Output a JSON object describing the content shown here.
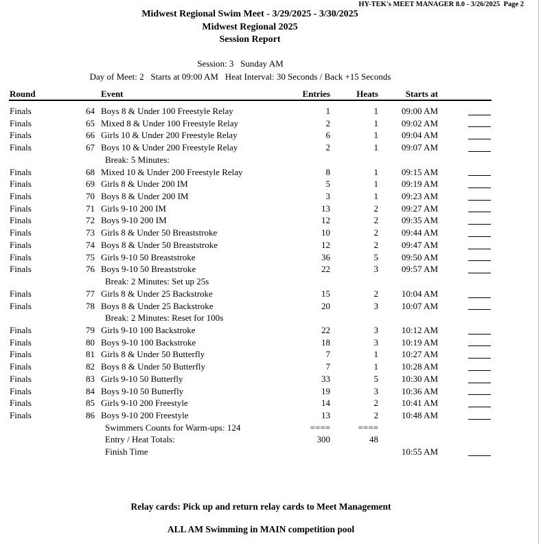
{
  "page_header": {
    "right": "HY-TEK's MEET MANAGER 8.0 - 3/26/2025  Page 2"
  },
  "title": {
    "line1": "Midwest Regional Swim Meet - 3/29/2025 - 3/30/2025",
    "line2": "Midwest Regional 2025",
    "line3": "Session Report"
  },
  "session_info": {
    "session_line": "Session: 3   Sunday AM",
    "detail_line": "Day of Meet: 2   Starts at 09:00 AM   Heat Interval: 30 Seconds / Back +15 Seconds"
  },
  "table": {
    "columns": {
      "round": "Round",
      "event": "Event",
      "entries": "Entries",
      "heats": "Heats",
      "starts_at": "Starts at"
    },
    "rows": [
      {
        "type": "event",
        "round": "Finals",
        "num": "64",
        "name": "Boys 8 & Under 100 Freestyle Relay",
        "entries": "1",
        "heats": "1",
        "starts_at": "09:00 AM",
        "blank_line": true
      },
      {
        "type": "event",
        "round": "Finals",
        "num": "65",
        "name": "Mixed 8 & Under 100 Freestyle Relay",
        "entries": "2",
        "heats": "1",
        "starts_at": "09:02 AM",
        "blank_line": true
      },
      {
        "type": "event",
        "round": "Finals",
        "num": "66",
        "name": "Girls 10 & Under 200 Freestyle Relay",
        "entries": "6",
        "heats": "1",
        "starts_at": "09:04 AM",
        "blank_line": true
      },
      {
        "type": "event",
        "round": "Finals",
        "num": "67",
        "name": "Boys 10 & Under 200 Freestyle Relay",
        "entries": "2",
        "heats": "1",
        "starts_at": "09:07 AM",
        "blank_line": true
      },
      {
        "type": "break",
        "label": "Break: 5 Minutes:"
      },
      {
        "type": "event",
        "round": "Finals",
        "num": "68",
        "name": "Mixed 10 & Under 200 Freestyle Relay",
        "entries": "8",
        "heats": "1",
        "starts_at": "09:15 AM",
        "blank_line": true
      },
      {
        "type": "event",
        "round": "Finals",
        "num": "69",
        "name": "Girls 8 & Under 200 IM",
        "entries": "5",
        "heats": "1",
        "starts_at": "09:19 AM",
        "blank_line": true
      },
      {
        "type": "event",
        "round": "Finals",
        "num": "70",
        "name": "Boys 8 & Under 200 IM",
        "entries": "3",
        "heats": "1",
        "starts_at": "09:23 AM",
        "blank_line": true
      },
      {
        "type": "event",
        "round": "Finals",
        "num": "71",
        "name": "Girls 9-10 200 IM",
        "entries": "13",
        "heats": "2",
        "starts_at": "09:27 AM",
        "blank_line": true
      },
      {
        "type": "event",
        "round": "Finals",
        "num": "72",
        "name": "Boys 9-10 200 IM",
        "entries": "12",
        "heats": "2",
        "starts_at": "09:35 AM",
        "blank_line": true
      },
      {
        "type": "event",
        "round": "Finals",
        "num": "73",
        "name": "Girls 8 & Under 50 Breaststroke",
        "entries": "10",
        "heats": "2",
        "starts_at": "09:44 AM",
        "blank_line": true
      },
      {
        "type": "event",
        "round": "Finals",
        "num": "74",
        "name": "Boys 8 & Under 50 Breaststroke",
        "entries": "12",
        "heats": "2",
        "starts_at": "09:47 AM",
        "blank_line": true
      },
      {
        "type": "event",
        "round": "Finals",
        "num": "75",
        "name": "Girls 9-10 50 Breaststroke",
        "entries": "36",
        "heats": "5",
        "starts_at": "09:50 AM",
        "blank_line": true
      },
      {
        "type": "event",
        "round": "Finals",
        "num": "76",
        "name": "Boys 9-10 50 Breaststroke",
        "entries": "22",
        "heats": "3",
        "starts_at": "09:57 AM",
        "blank_line": true
      },
      {
        "type": "break",
        "label": "Break: 2 Minutes: Set up 25s"
      },
      {
        "type": "event",
        "round": "Finals",
        "num": "77",
        "name": "Girls 8 & Under 25 Backstroke",
        "entries": "15",
        "heats": "2",
        "starts_at": "10:04 AM",
        "blank_line": true
      },
      {
        "type": "event",
        "round": "Finals",
        "num": "78",
        "name": "Boys 8 & Under 25 Backstroke",
        "entries": "20",
        "heats": "3",
        "starts_at": "10:07 AM",
        "blank_line": true
      },
      {
        "type": "break",
        "label": "Break: 2 Minutes: Reset for 100s"
      },
      {
        "type": "event",
        "round": "Finals",
        "num": "79",
        "name": "Girls 9-10 100 Backstroke",
        "entries": "22",
        "heats": "3",
        "starts_at": "10:12 AM",
        "blank_line": true
      },
      {
        "type": "event",
        "round": "Finals",
        "num": "80",
        "name": "Boys 9-10 100 Backstroke",
        "entries": "18",
        "heats": "3",
        "starts_at": "10:19 AM",
        "blank_line": true
      },
      {
        "type": "event",
        "round": "Finals",
        "num": "81",
        "name": "Girls 8 & Under 50 Butterfly",
        "entries": "7",
        "heats": "1",
        "starts_at": "10:27 AM",
        "blank_line": true
      },
      {
        "type": "event",
        "round": "Finals",
        "num": "82",
        "name": "Boys 8 & Under 50 Butterfly",
        "entries": "7",
        "heats": "1",
        "starts_at": "10:28 AM",
        "blank_line": true
      },
      {
        "type": "event",
        "round": "Finals",
        "num": "83",
        "name": "Girls 9-10 50 Butterfly",
        "entries": "33",
        "heats": "5",
        "starts_at": "10:30 AM",
        "blank_line": true
      },
      {
        "type": "event",
        "round": "Finals",
        "num": "84",
        "name": "Boys 9-10 50 Butterfly",
        "entries": "19",
        "heats": "3",
        "starts_at": "10:36 AM",
        "blank_line": true
      },
      {
        "type": "event",
        "round": "Finals",
        "num": "85",
        "name": "Girls 9-10 200 Freestyle",
        "entries": "14",
        "heats": "2",
        "starts_at": "10:41 AM",
        "blank_line": true
      },
      {
        "type": "event",
        "round": "Finals",
        "num": "86",
        "name": "Boys 9-10 200 Freestyle",
        "entries": "13",
        "heats": "2",
        "starts_at": "10:48 AM",
        "blank_line": true
      },
      {
        "type": "summary",
        "label": "Swimmers Counts for Warm-ups: 124",
        "entries": "====",
        "heats": "====",
        "starts_at": "",
        "blank_line": false
      },
      {
        "type": "summary",
        "label": "Entry / Heat Totals:",
        "entries": "300",
        "heats": "48",
        "starts_at": "",
        "blank_line": false
      },
      {
        "type": "summary",
        "label": "Finish Time",
        "entries": "",
        "heats": "",
        "starts_at": "10:55 AM",
        "blank_line": true
      }
    ]
  },
  "footer": {
    "note1": "Relay cards: Pick up and return relay cards to Meet Management",
    "note2": "ALL AM Swimming in MAIN competition pool"
  },
  "colors": {
    "text": "#000000",
    "background": "#ffffff",
    "page_edge": "#b8b8b8"
  }
}
